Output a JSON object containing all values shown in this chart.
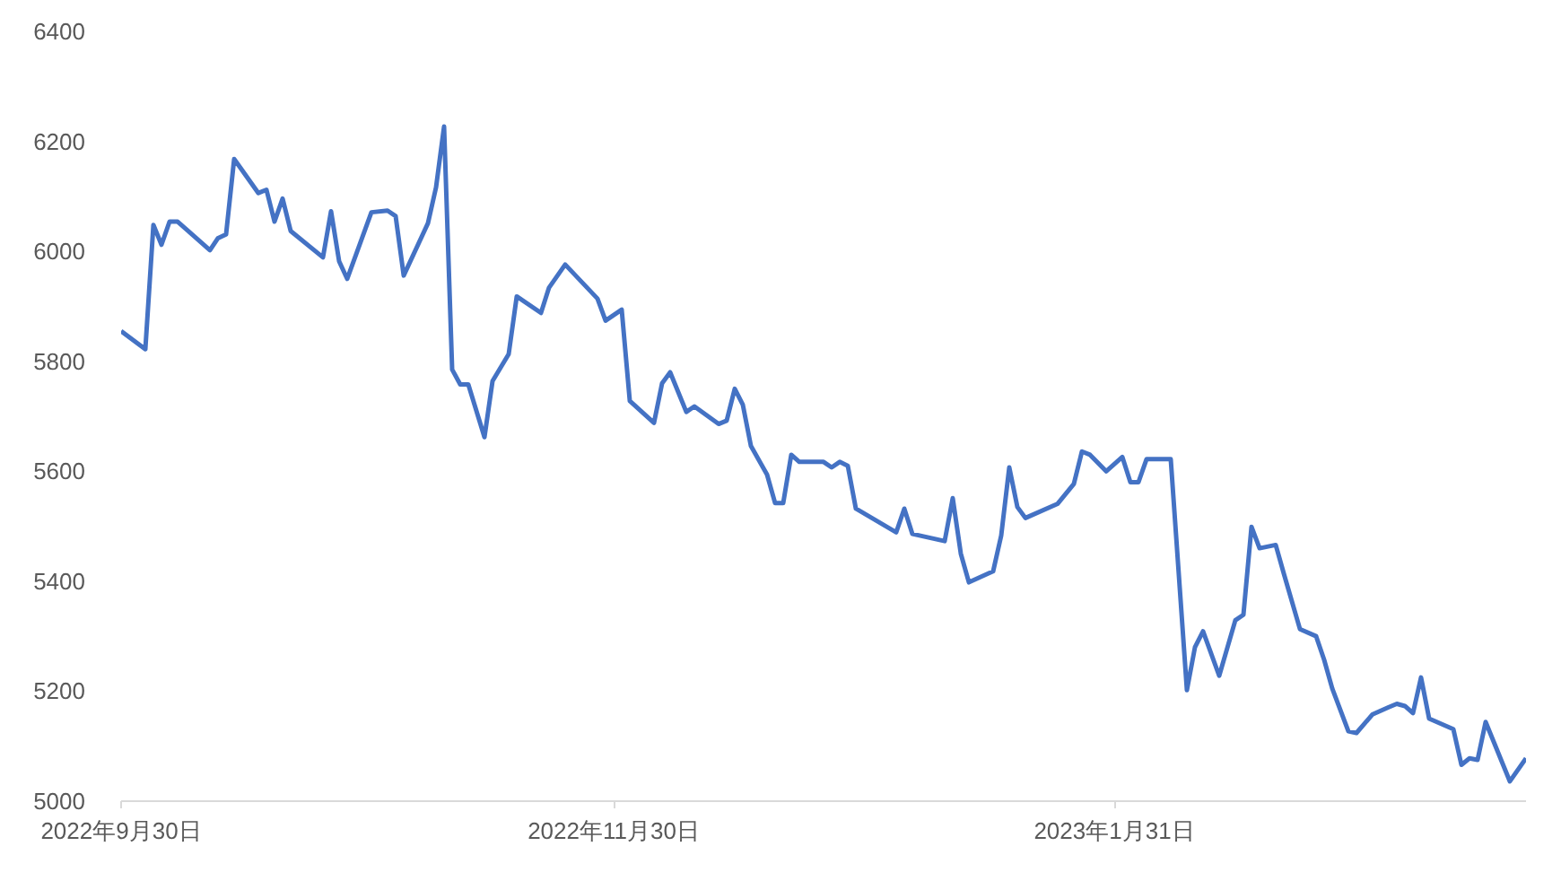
{
  "chart_data": {
    "type": "line",
    "x": [
      "2022-09-30",
      "2022-10-03",
      "2022-10-04",
      "2022-10-05",
      "2022-10-06",
      "2022-10-07",
      "2022-10-11",
      "2022-10-12",
      "2022-10-13",
      "2022-10-14",
      "2022-10-17",
      "2022-10-18",
      "2022-10-19",
      "2022-10-20",
      "2022-10-21",
      "2022-10-25",
      "2022-10-26",
      "2022-10-27",
      "2022-10-28",
      "2022-10-31",
      "2022-11-02",
      "2022-11-03",
      "2022-11-04",
      "2022-11-07",
      "2022-11-08",
      "2022-11-09",
      "2022-11-10",
      "2022-11-11",
      "2022-11-12",
      "2022-11-14",
      "2022-11-15",
      "2022-11-17",
      "2022-11-18",
      "2022-11-21",
      "2022-11-22",
      "2022-11-24",
      "2022-11-28",
      "2022-11-29",
      "2022-12-01",
      "2022-12-02",
      "2022-12-05",
      "2022-12-06",
      "2022-12-07",
      "2022-12-09",
      "2022-12-10",
      "2022-12-13",
      "2022-12-14",
      "2022-12-15",
      "2022-12-16",
      "2022-12-17",
      "2022-12-19",
      "2022-12-20",
      "2022-12-21",
      "2022-12-22",
      "2022-12-23",
      "2022-12-26",
      "2022-12-27",
      "2022-12-28",
      "2022-12-29",
      "2022-12-30",
      "2023-01-04",
      "2023-01-05",
      "2023-01-06",
      "2023-01-10",
      "2023-01-11",
      "2023-01-12",
      "2023-01-13",
      "2023-01-16",
      "2023-01-17",
      "2023-01-18",
      "2023-01-19",
      "2023-01-20",
      "2023-01-24",
      "2023-01-26",
      "2023-01-27",
      "2023-01-28",
      "2023-01-30",
      "2023-02-01",
      "2023-02-02",
      "2023-02-03",
      "2023-02-04",
      "2023-02-07",
      "2023-02-09",
      "2023-02-10",
      "2023-02-11",
      "2023-02-13",
      "2023-02-15",
      "2023-02-16",
      "2023-02-17",
      "2023-02-18",
      "2023-02-20",
      "2023-02-21",
      "2023-02-23",
      "2023-02-25",
      "2023-02-26",
      "2023-02-27",
      "2023-03-01",
      "2023-03-02",
      "2023-03-04",
      "2023-03-06",
      "2023-03-07",
      "2023-03-08",
      "2023-03-09",
      "2023-03-10",
      "2023-03-11",
      "2023-03-14",
      "2023-03-15",
      "2023-03-16",
      "2023-03-17",
      "2023-03-18",
      "2023-03-21",
      "2023-03-23"
    ],
    "series": [
      {
        "color": "#4472c4",
        "values": [
          5855,
          5822,
          6048,
          6012,
          6054,
          6054,
          6002,
          6024,
          6031,
          6168,
          6106,
          6112,
          6054,
          6096,
          6037,
          5989,
          6073,
          5982,
          5950,
          6071,
          6074,
          6064,
          5956,
          6051,
          6116,
          6227,
          5785,
          5758,
          5758,
          5662,
          5764,
          5813,
          5918,
          5888,
          5934,
          5976,
          5914,
          5874,
          5894,
          5728,
          5688,
          5760,
          5780,
          5708,
          5718,
          5686,
          5692,
          5750,
          5721,
          5646,
          5594,
          5542,
          5542,
          5630,
          5617,
          5617,
          5607,
          5617,
          5610,
          5532,
          5489,
          5532,
          5486,
          5473,
          5551,
          5450,
          5398,
          5418,
          5483,
          5607,
          5535,
          5515,
          5541,
          5577,
          5636,
          5630,
          5600,
          5626,
          5580,
          5580,
          5622,
          5622,
          5202,
          5280,
          5309,
          5228,
          5329,
          5339,
          5499,
          5460,
          5466,
          5414,
          5313,
          5300,
          5257,
          5205,
          5127,
          5124,
          5158,
          5171,
          5177,
          5173,
          5160,
          5225,
          5150,
          5131,
          5066,
          5078,
          5075,
          5144,
          5036,
          5078
        ]
      }
    ],
    "xlim": [
      "2022-09-30",
      "2023-03-23"
    ],
    "xticks": [
      {
        "value": "2022-09-30",
        "label": "2022年9月30日"
      },
      {
        "value": "2022-11-30",
        "label": "2022年11月30日"
      },
      {
        "value": "2023-01-31",
        "label": "2023年1月31日"
      }
    ],
    "ylim": [
      5000,
      6400
    ],
    "yticks": [
      5000,
      5200,
      5400,
      5600,
      5800,
      6000,
      6200,
      6400
    ],
    "line_style": "solid"
  }
}
